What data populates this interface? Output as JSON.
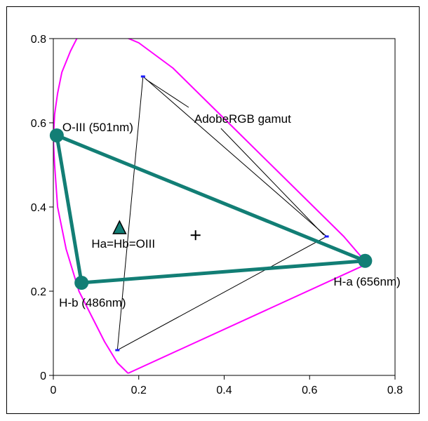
{
  "chart_data": {
    "type": "scatter",
    "title": "",
    "xlabel": "",
    "ylabel": "",
    "xlim": [
      0,
      0.8
    ],
    "ylim": [
      0,
      0.8
    ],
    "xticks": [
      "0",
      "0.2",
      "0.4",
      "0.6",
      "0.8"
    ],
    "yticks": [
      "0",
      "0.2",
      "0.4",
      "0.6",
      "0.8"
    ],
    "grid": false,
    "legend": "none",
    "series": [
      {
        "kind": "spectral-locus",
        "color": "#ff00ff",
        "points": [
          [
            0.175,
            0.005
          ],
          [
            0.15,
            0.03
          ],
          [
            0.12,
            0.08
          ],
          [
            0.09,
            0.14
          ],
          [
            0.06,
            0.2
          ],
          [
            0.03,
            0.3
          ],
          [
            0.01,
            0.4
          ],
          [
            0.003,
            0.5
          ],
          [
            0.0,
            0.56
          ],
          [
            0.003,
            0.62
          ],
          [
            0.01,
            0.67
          ],
          [
            0.02,
            0.72
          ],
          [
            0.04,
            0.77
          ],
          [
            0.06,
            0.81
          ]
        ]
      },
      {
        "kind": "spectral-locus",
        "color": "#ff00ff",
        "points": [
          [
            0.13,
            0.82
          ],
          [
            0.2,
            0.79
          ],
          [
            0.28,
            0.73
          ],
          [
            0.36,
            0.65
          ],
          [
            0.44,
            0.57
          ],
          [
            0.52,
            0.49
          ],
          [
            0.6,
            0.41
          ],
          [
            0.68,
            0.33
          ],
          [
            0.735,
            0.265
          ]
        ]
      },
      {
        "kind": "purple-line",
        "color": "#ff00ff",
        "points": [
          [
            0.175,
            0.005
          ],
          [
            0.735,
            0.265
          ]
        ]
      },
      {
        "kind": "emission-lines-triangle",
        "color": "#127e75",
        "points": [
          {
            "label": "O-III (501nm)",
            "x": 0.008,
            "y": 0.57
          },
          {
            "label": "H-a (656nm)",
            "x": 0.73,
            "y": 0.272
          },
          {
            "label": "H-b (486nm)",
            "x": 0.066,
            "y": 0.22
          }
        ]
      },
      {
        "kind": "adobe-rgb-gamut",
        "color": "#000000",
        "points": [
          [
            0.21,
            0.71
          ],
          [
            0.64,
            0.33
          ],
          [
            0.15,
            0.06
          ]
        ]
      },
      {
        "kind": "equal-mix-marker",
        "label": "Ha=Hb=OIII",
        "color": "#127e75",
        "points": [
          [
            0.155,
            0.35
          ]
        ]
      },
      {
        "kind": "white-point",
        "points": [
          [
            0.333,
            0.333
          ]
        ]
      }
    ],
    "annotations": [
      {
        "text": "AdobeRGB gamut",
        "x": 0.33,
        "y": 0.6
      }
    ]
  }
}
